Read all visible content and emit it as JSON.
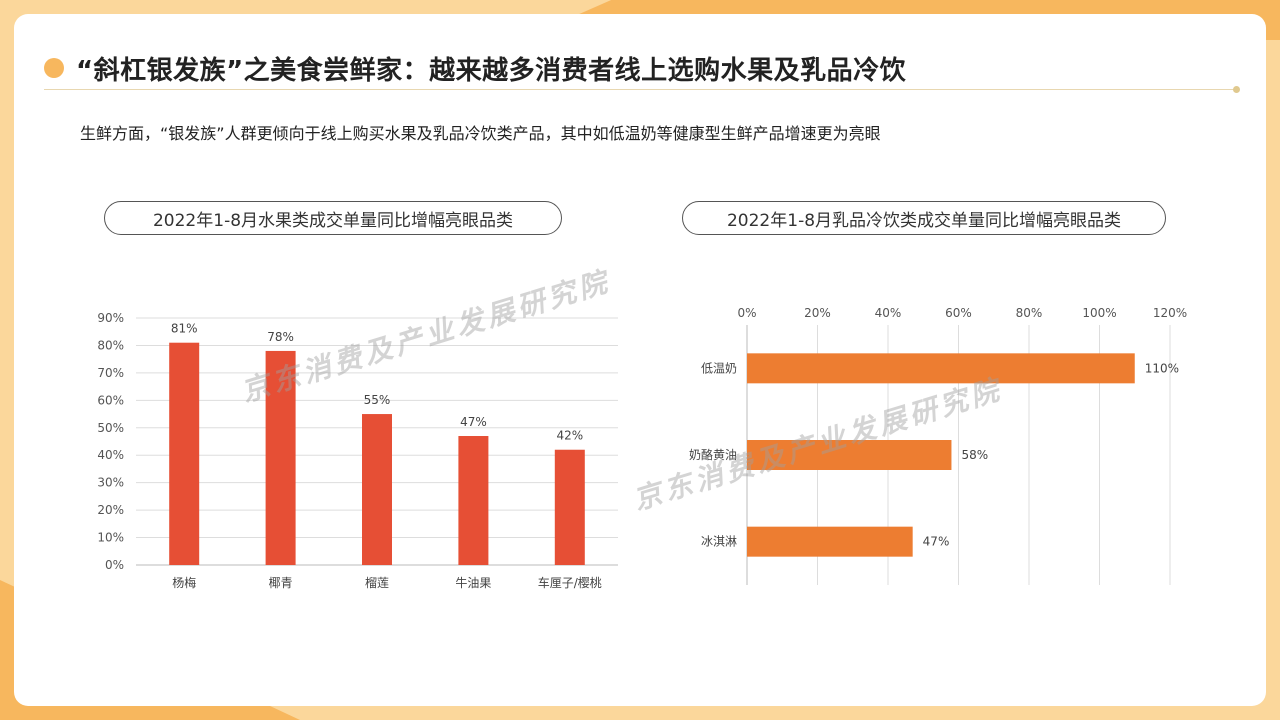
{
  "header": {
    "title": "“斜杠银发族”之美食尝鲜家：越来越多消费者线上选购水果及乳品冷饮",
    "subtitle": "生鲜方面，“银发族”人群更倾向于线上购买水果及乳品冷饮类产品，其中如低温奶等健康型生鲜产品增速更为亮眼"
  },
  "watermark": "京东消费及产业发展研究院",
  "colors": {
    "bar_left": "#e64f35",
    "bar_right": "#ed7d31",
    "accent": "#f7b75e"
  },
  "chart_data": [
    {
      "type": "bar",
      "orientation": "vertical",
      "title": "2022年1-8月水果类成交单量同比增幅亮眼品类",
      "categories": [
        "杨梅",
        "椰青",
        "榴莲",
        "牛油果",
        "车厘子/樱桃"
      ],
      "values": [
        81,
        78,
        55,
        47,
        42
      ],
      "value_labels": [
        "81%",
        "78%",
        "55%",
        "47%",
        "42%"
      ],
      "ylim": [
        0,
        90
      ],
      "yticks": [
        "0%",
        "10%",
        "20%",
        "30%",
        "40%",
        "50%",
        "60%",
        "70%",
        "80%",
        "90%"
      ],
      "grid": true
    },
    {
      "type": "bar",
      "orientation": "horizontal",
      "title": "2022年1-8月乳品冷饮类成交单量同比增幅亮眼品类",
      "categories": [
        "低温奶",
        "奶酪黄油",
        "冰淇淋"
      ],
      "values": [
        110,
        58,
        47
      ],
      "value_labels": [
        "110%",
        "58%",
        "47%"
      ],
      "xlim": [
        0,
        120
      ],
      "xticks": [
        "0%",
        "20%",
        "40%",
        "60%",
        "80%",
        "100%",
        "120%"
      ],
      "grid": true
    }
  ]
}
